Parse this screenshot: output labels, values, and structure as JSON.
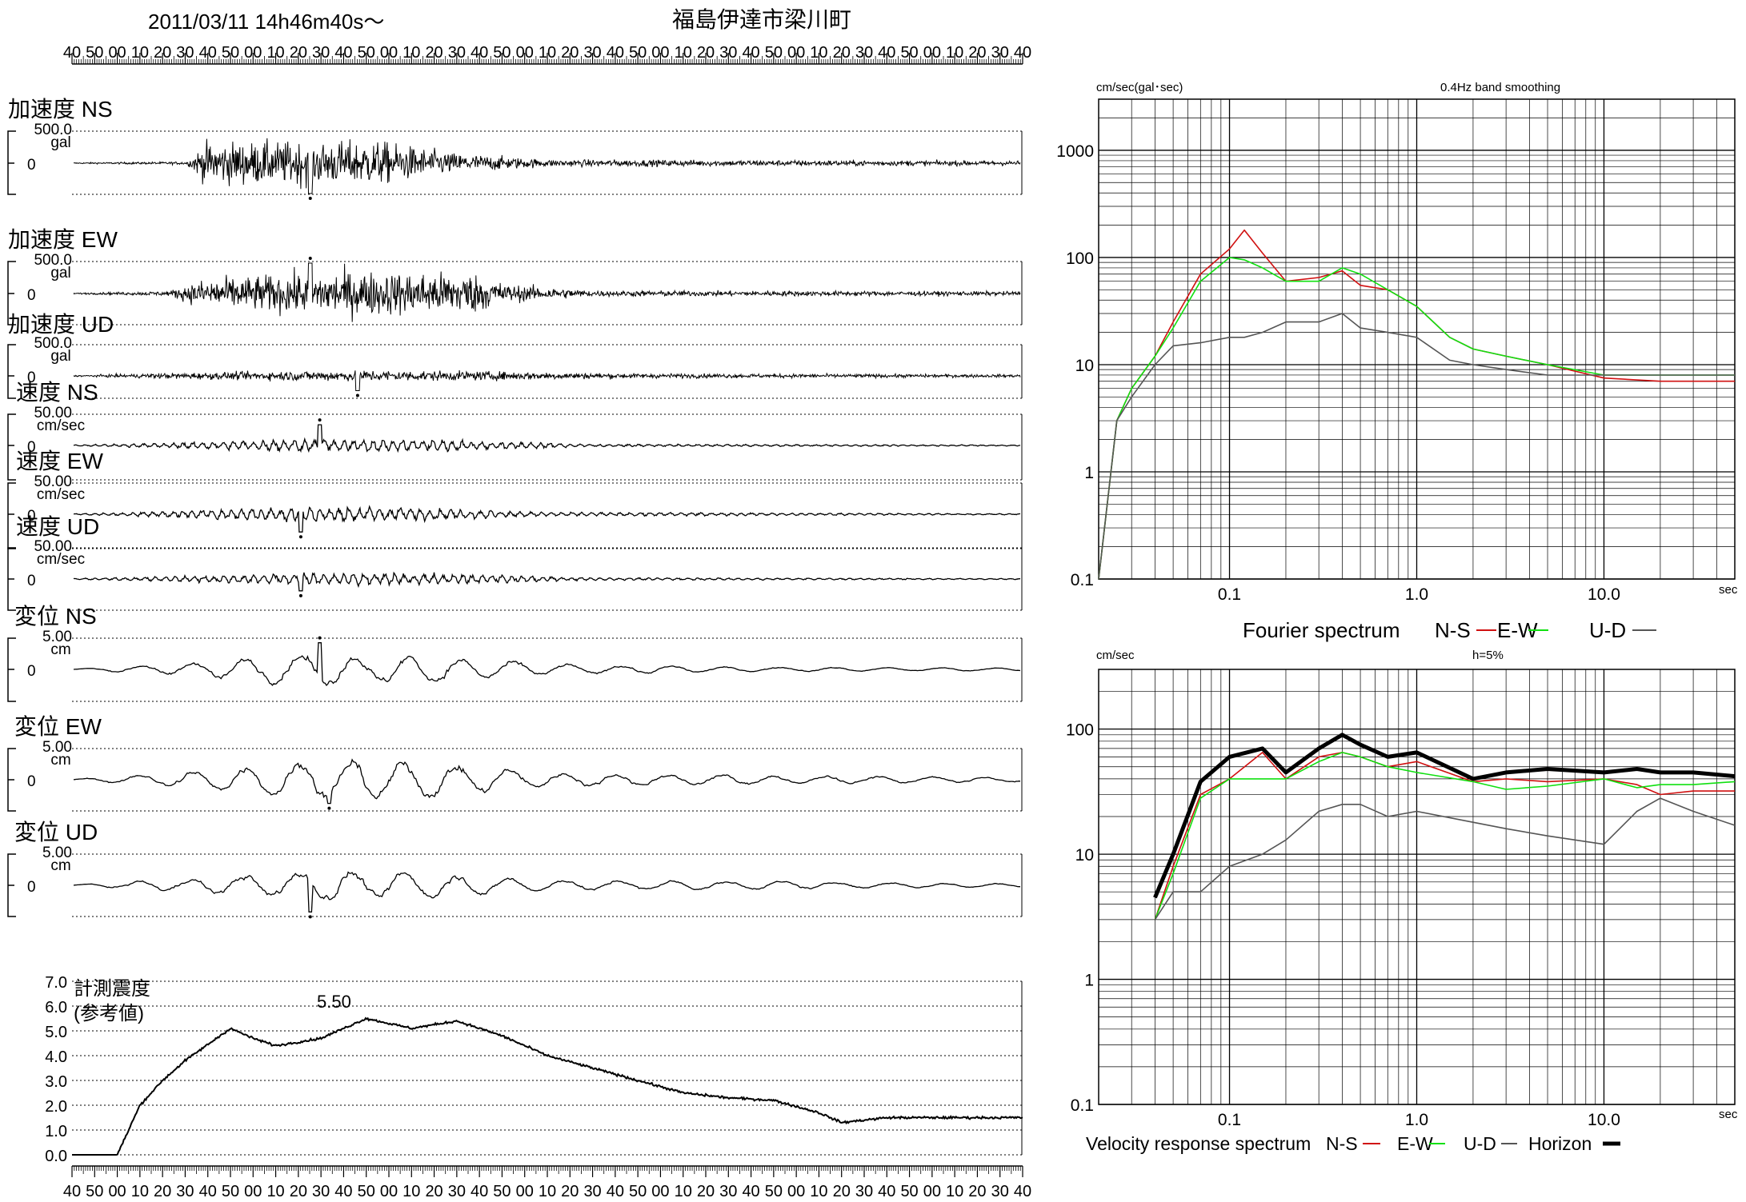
{
  "header": {
    "datetime": "2011/03/11  14h46m40s〜",
    "station": "福島伊達市梁川町"
  },
  "time_axis_ticks": [
    "40",
    "50",
    "00",
    "10",
    "20",
    "30",
    "40",
    "50",
    "00",
    "10",
    "20",
    "30",
    "40",
    "50",
    "00",
    "10",
    "20",
    "30",
    "40",
    "50",
    "00",
    "10",
    "20",
    "30",
    "40",
    "50",
    "00",
    "10",
    "20",
    "30",
    "40",
    "50",
    "00",
    "10",
    "20",
    "30",
    "40",
    "50",
    "00",
    "10",
    "20",
    "30",
    "40"
  ],
  "waveforms": [
    {
      "label": "加速度 NS",
      "scale": "500.0",
      "unit": "gal",
      "zero": "0"
    },
    {
      "label": "加速度 EW",
      "scale": "500.0",
      "unit": "gal",
      "zero": "0"
    },
    {
      "label": "加速度 UD",
      "scale": "500.0",
      "unit": "gal",
      "zero": "0"
    },
    {
      "label": "速度 NS",
      "scale": "50.00",
      "unit": "cm/sec",
      "zero": "0"
    },
    {
      "label": "速度 EW",
      "scale": "50.00",
      "unit": "cm/sec",
      "zero": "0"
    },
    {
      "label": "速度 UD",
      "scale": "50.00",
      "unit": "cm/sec",
      "zero": "0"
    },
    {
      "label": "変位 NS",
      "scale": "5.00",
      "unit": "cm",
      "zero": "0"
    },
    {
      "label": "変位 EW",
      "scale": "5.00",
      "unit": "cm",
      "zero": "0"
    },
    {
      "label": "変位 UD",
      "scale": "5.00",
      "unit": "cm",
      "zero": "0"
    }
  ],
  "intensity": {
    "label1": "計測震度",
    "label2": "(参考値)",
    "max_label": "5.50",
    "y_ticks": [
      "7.0",
      "6.0",
      "5.0",
      "4.0",
      "3.0",
      "2.0",
      "1.0",
      "0.0"
    ]
  },
  "fourier": {
    "ylabel": "cm/sec(gal･sec)",
    "title": "0.4Hz band smoothing",
    "xunit": "sec",
    "y_ticks": [
      "1000",
      "100",
      "10",
      "1",
      "0.1"
    ],
    "x_ticks": [
      "0.1",
      "1.0",
      "10.0"
    ],
    "legend_title": "Fourier spectrum",
    "series": [
      {
        "name": "N-S",
        "color": "#d01010"
      },
      {
        "name": "E-W",
        "color": "#10e010"
      },
      {
        "name": "U-D",
        "color": "#555555"
      }
    ]
  },
  "response": {
    "ylabel": "cm/sec",
    "title": "h=5%",
    "xunit": "sec",
    "y_ticks": [
      "100",
      "10",
      "1",
      "0.1"
    ],
    "x_ticks": [
      "0.1",
      "1.0",
      "10.0"
    ],
    "legend_title": "Velocity response spectrum",
    "series": [
      {
        "name": "N-S",
        "color": "#d01010"
      },
      {
        "name": "E-W",
        "color": "#10e010"
      },
      {
        "name": "U-D",
        "color": "#555555"
      },
      {
        "name": "Horizon",
        "color": "#000000"
      }
    ]
  },
  "chart_data": [
    {
      "type": "line",
      "title": "計測震度 (参考値)",
      "xlabel": "",
      "ylabel": "計測震度",
      "ylim": [
        0,
        7
      ],
      "x": [
        "14:46:40",
        "14:47:00",
        "14:47:10",
        "14:47:20",
        "14:47:30",
        "14:47:50",
        "14:48:00",
        "14:48:10",
        "14:48:30",
        "14:48:50",
        "14:49:10",
        "14:49:30",
        "14:49:50",
        "14:50:10",
        "14:50:30",
        "14:50:50",
        "14:51:10",
        "14:51:30",
        "14:51:50",
        "14:52:10",
        "14:52:20",
        "14:52:40"
      ],
      "series": [
        {
          "values": [
            0.0,
            0.0,
            2.0,
            3.0,
            3.8,
            5.1,
            4.7,
            4.4,
            4.7,
            5.5,
            5.1,
            5.4,
            4.8,
            4.0,
            3.5,
            3.0,
            2.5,
            2.3,
            2.2,
            1.7,
            1.3,
            1.5
          ]
        }
      ]
    },
    {
      "type": "line",
      "title": "Fourier spectrum",
      "xlabel": "sec",
      "ylabel": "cm/sec(gal･sec)",
      "xscale": "log",
      "yscale": "log",
      "xlim": [
        0.02,
        50
      ],
      "ylim": [
        0.1,
        3000
      ],
      "x": [
        0.02,
        0.025,
        0.03,
        0.04,
        0.05,
        0.07,
        0.1,
        0.12,
        0.15,
        0.2,
        0.3,
        0.4,
        0.5,
        0.7,
        1.0,
        1.5,
        2,
        3,
        5,
        10,
        20,
        50
      ],
      "series": [
        {
          "name": "N-S",
          "values": [
            0.1,
            3,
            6,
            12,
            25,
            70,
            120,
            180,
            110,
            60,
            65,
            75,
            55,
            50,
            35,
            18,
            14,
            12,
            10,
            7.5,
            7,
            7
          ]
        },
        {
          "name": "E-W",
          "values": [
            0.1,
            3,
            6,
            12,
            22,
            60,
            100,
            95,
            80,
            60,
            60,
            80,
            70,
            50,
            35,
            18,
            14,
            12,
            10,
            8,
            8,
            8
          ]
        },
        {
          "name": "U-D",
          "values": [
            0.1,
            3,
            5,
            10,
            15,
            16,
            18,
            18,
            20,
            25,
            25,
            30,
            22,
            20,
            18,
            11,
            10,
            9,
            8,
            8,
            8,
            8
          ]
        }
      ]
    },
    {
      "type": "line",
      "title": "Velocity response spectrum",
      "xlabel": "sec",
      "ylabel": "cm/sec",
      "xscale": "log",
      "yscale": "log",
      "xlim": [
        0.02,
        50
      ],
      "ylim": [
        0.1,
        300
      ],
      "x": [
        0.04,
        0.05,
        0.07,
        0.1,
        0.15,
        0.2,
        0.3,
        0.4,
        0.5,
        0.7,
        1,
        2,
        3,
        5,
        10,
        15,
        20,
        30,
        50
      ],
      "series": [
        {
          "name": "N-S",
          "values": [
            3,
            8,
            30,
            40,
            65,
            40,
            60,
            65,
            60,
            50,
            55,
            38,
            40,
            38,
            40,
            36,
            30,
            32,
            32
          ]
        },
        {
          "name": "E-W",
          "values": [
            3,
            7,
            28,
            40,
            40,
            40,
            55,
            65,
            60,
            50,
            45,
            38,
            33,
            35,
            40,
            34,
            36,
            36,
            38
          ]
        },
        {
          "name": "U-D",
          "values": [
            3,
            5,
            5,
            8,
            10,
            13,
            22,
            25,
            25,
            20,
            22,
            18,
            16,
            14,
            12,
            22,
            28,
            22,
            17
          ]
        },
        {
          "name": "Horizon",
          "values": [
            4.5,
            10,
            38,
            60,
            70,
            45,
            70,
            90,
            75,
            60,
            65,
            40,
            45,
            48,
            45,
            48,
            45,
            45,
            42
          ]
        }
      ]
    }
  ]
}
